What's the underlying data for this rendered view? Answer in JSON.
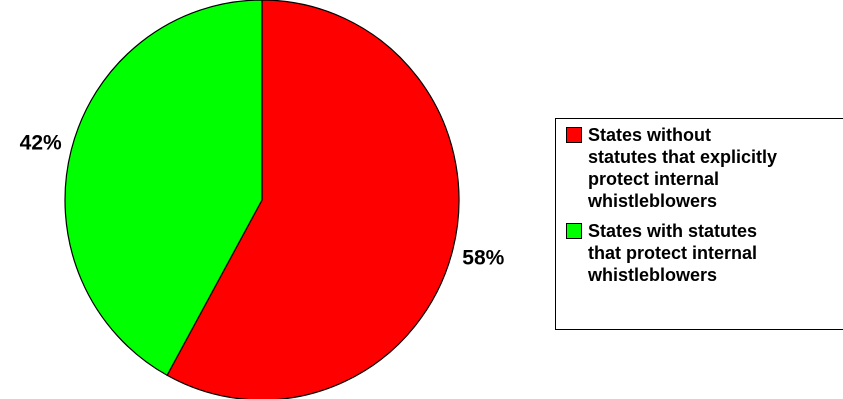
{
  "chart_data": {
    "type": "pie",
    "title": "",
    "slices": [
      {
        "label": "States without statutes that explicitly protect internal whistleblowers",
        "value": 58,
        "data_label": "58%",
        "color": "#ff0000"
      },
      {
        "label": "States with statutes that protect internal whistleblowers",
        "value": 42,
        "data_label": "42%",
        "color": "#00ff00"
      }
    ],
    "legend": {
      "placement": "right",
      "entries": [
        {
          "text": "States without\nstatutes that explicitly\nprotect internal\nwhistleblowers",
          "color": "#ff0000"
        },
        {
          "text": "States with statutes\nthat protect internal\nwhistleblowers",
          "color": "#00ff00"
        }
      ]
    }
  }
}
